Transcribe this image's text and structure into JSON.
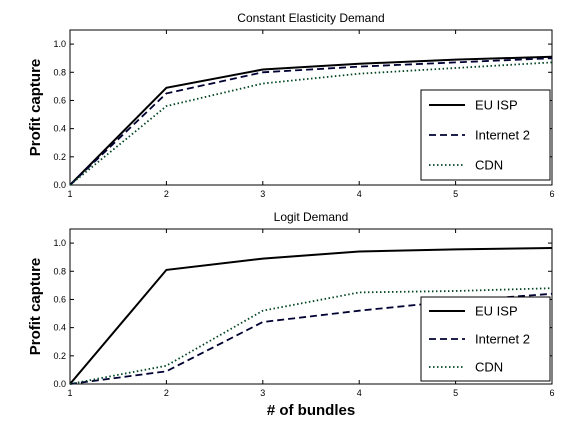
{
  "chart_data": [
    {
      "type": "line",
      "title": "Constant Elasticity Demand",
      "xlabel": "",
      "ylabel": "Profit capture",
      "x": [
        1,
        2,
        3,
        4,
        5,
        6
      ],
      "xlim": [
        1,
        6
      ],
      "ylim": [
        0,
        1.1
      ],
      "xticks": [
        "1",
        "2",
        "3",
        "4",
        "5",
        "6"
      ],
      "yticks": [
        "0.0",
        "0.2",
        "0.4",
        "0.6",
        "0.8",
        "1.0"
      ],
      "grid": false,
      "legend_position": "lower-right",
      "series": [
        {
          "name": "EU ISP",
          "values": [
            0.0,
            0.69,
            0.82,
            0.86,
            0.89,
            0.91
          ],
          "color": "#000000",
          "style": "solid"
        },
        {
          "name": "Internet 2",
          "values": [
            0.0,
            0.65,
            0.8,
            0.84,
            0.87,
            0.9
          ],
          "color": "#000033",
          "style": "dashed"
        },
        {
          "name": "CDN",
          "values": [
            0.0,
            0.56,
            0.72,
            0.79,
            0.83,
            0.87
          ],
          "color": "#004422",
          "style": "dotted"
        }
      ]
    },
    {
      "type": "line",
      "title": "Logit Demand",
      "xlabel": "# of bundles",
      "ylabel": "Profit capture",
      "x": [
        1,
        2,
        3,
        4,
        5,
        6
      ],
      "xlim": [
        1,
        6
      ],
      "ylim": [
        0,
        1.1
      ],
      "xticks": [
        "1",
        "2",
        "3",
        "4",
        "5",
        "6"
      ],
      "yticks": [
        "0.0",
        "0.2",
        "0.4",
        "0.6",
        "0.8",
        "1.0"
      ],
      "grid": false,
      "legend_position": "lower-right",
      "series": [
        {
          "name": "EU ISP",
          "values": [
            0.0,
            0.81,
            0.89,
            0.94,
            0.955,
            0.965
          ],
          "color": "#000000",
          "style": "solid"
        },
        {
          "name": "Internet 2",
          "values": [
            0.0,
            0.09,
            0.44,
            0.52,
            0.59,
            0.64
          ],
          "color": "#000033",
          "style": "dashed"
        },
        {
          "name": "CDN",
          "values": [
            0.0,
            0.13,
            0.52,
            0.65,
            0.66,
            0.68
          ],
          "color": "#004422",
          "style": "dotted"
        }
      ]
    }
  ]
}
